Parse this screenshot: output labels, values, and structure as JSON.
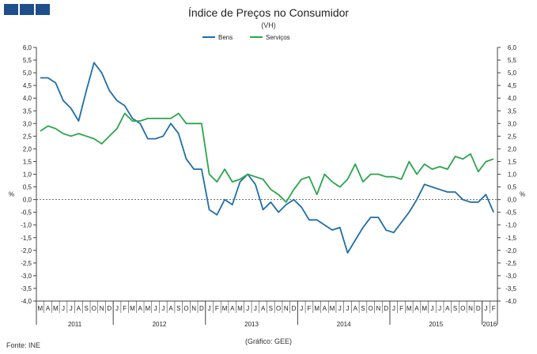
{
  "header": {
    "logo_icon": "ine-logo-squares-icon",
    "title": "Índice de Preços no Consumidor",
    "subtitle": "(VH)"
  },
  "footer": {
    "source": "Fonte: INE",
    "credit": "(Gráfico: GEE)"
  },
  "chart_data": {
    "type": "line",
    "ylabel_left": "%",
    "ylabel_right": "%",
    "ylim": [
      -4.0,
      6.0
    ],
    "yticks": [
      "6,0",
      "5,5",
      "5,0",
      "4,5",
      "4,0",
      "3,5",
      "3,0",
      "2,5",
      "2,0",
      "1,5",
      "1,0",
      "0,5",
      "0,0",
      "-0,5",
      "-1,0",
      "-1,5",
      "-2,0",
      "-2,5",
      "-3,0",
      "-3,5",
      "-4,0"
    ],
    "month_labels": [
      "M",
      "A",
      "M",
      "J",
      "J",
      "A",
      "S",
      "O",
      "N",
      "D",
      "J",
      "F",
      "M",
      "A",
      "M",
      "J",
      "J",
      "A",
      "S",
      "O",
      "N",
      "D",
      "J",
      "F",
      "M",
      "A",
      "M",
      "J",
      "J",
      "A",
      "S",
      "O",
      "N",
      "D",
      "J",
      "F",
      "M",
      "A",
      "M",
      "J",
      "J",
      "A",
      "S",
      "O",
      "N",
      "D",
      "J",
      "F",
      "M",
      "A",
      "M",
      "J",
      "J",
      "A",
      "S",
      "O",
      "N",
      "D",
      "J",
      "F"
    ],
    "year_labels": [
      {
        "label": "2011",
        "start": 0,
        "count": 10
      },
      {
        "label": "2012",
        "start": 10,
        "count": 12
      },
      {
        "label": "2013",
        "start": 22,
        "count": 12
      },
      {
        "label": "2014",
        "start": 34,
        "count": 12
      },
      {
        "label": "2015",
        "start": 46,
        "count": 12
      },
      {
        "label": "2016",
        "start": 58,
        "count": 2
      }
    ],
    "legend_position": "top-center",
    "grid": false,
    "series": [
      {
        "name": "Bens",
        "color": "#1f6ea8",
        "values": [
          4.8,
          4.8,
          4.6,
          3.9,
          3.6,
          3.1,
          4.3,
          5.4,
          5.0,
          4.3,
          3.9,
          3.7,
          3.2,
          3.0,
          2.4,
          2.4,
          2.5,
          3.0,
          2.6,
          1.6,
          1.2,
          1.2,
          -0.4,
          -0.6,
          0.0,
          -0.2,
          0.7,
          1.0,
          0.6,
          -0.4,
          -0.1,
          -0.5,
          -0.2,
          0.0,
          -0.3,
          -0.8,
          -0.8,
          -1.0,
          -1.2,
          -1.1,
          -2.1,
          -1.6,
          -1.1,
          -0.7,
          -0.7,
          -1.2,
          -1.3,
          -0.9,
          -0.5,
          0.0,
          0.6,
          0.5,
          0.4,
          0.3,
          0.3,
          0.0,
          -0.1,
          -0.1,
          0.2,
          -0.5
        ]
      },
      {
        "name": "Serviços",
        "color": "#2aa64b",
        "values": [
          2.7,
          2.9,
          2.8,
          2.6,
          2.5,
          2.6,
          2.5,
          2.4,
          2.2,
          2.5,
          2.8,
          3.4,
          3.1,
          3.1,
          3.2,
          3.2,
          3.2,
          3.2,
          3.4,
          3.0,
          3.0,
          3.0,
          1.0,
          0.7,
          1.2,
          0.7,
          0.8,
          1.0,
          0.9,
          0.8,
          0.4,
          0.2,
          -0.1,
          0.4,
          0.8,
          0.9,
          0.2,
          1.0,
          0.7,
          0.5,
          0.8,
          1.4,
          0.7,
          1.0,
          1.0,
          0.9,
          0.9,
          0.8,
          1.5,
          1.0,
          1.4,
          1.2,
          1.3,
          1.2,
          1.7,
          1.6,
          1.8,
          1.1,
          1.5,
          1.6
        ]
      }
    ]
  }
}
